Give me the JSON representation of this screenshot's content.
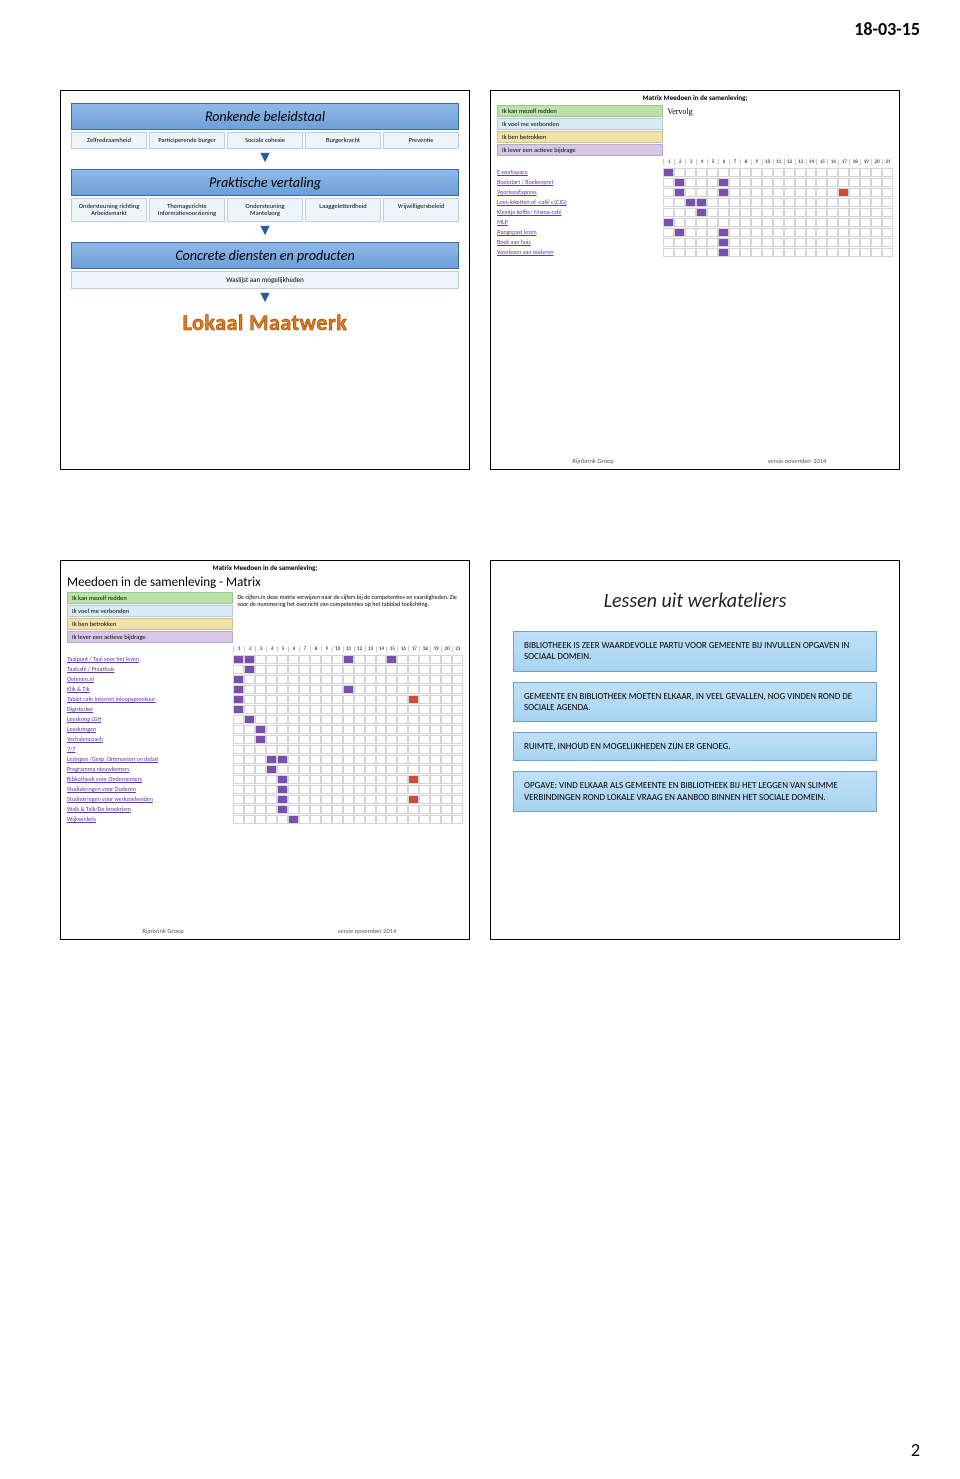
{
  "page": {
    "date": "18-03-15",
    "num": "2"
  },
  "slide1": {
    "bar1": "Ronkende beleidstaal",
    "row1": [
      "Zelfredzaamheid",
      "Participerende burger",
      "Sociale cohesie",
      "Burgerkracht",
      "Preventie"
    ],
    "bar2": "Praktische vertaling",
    "row2": [
      "Ondersteuning richting Arbeidsmarkt",
      "Themagerichte Informatievoorziening",
      "Ondersteuning Mantelzorg",
      "Laaggeletterdheid",
      "Vrijwilligersbeleid"
    ],
    "bar3": "Concrete diensten en producten",
    "sub3": "Waslijst aan mogelijkheden",
    "lokaal": "Lokaal Maatwerk"
  },
  "matrix": {
    "topline": "Matrix Meedoen in de samenleving;",
    "heading": "Meedoen in de samenleving - Matrix",
    "vervolg": "Vervolg",
    "legend_text": "De cijfers in deze matrix verwijzen naar de cijfers bij de competenties en vaardigheden. Zie voor de nummering het overzicht van competenties op het tabblad toelichting.",
    "pills": [
      "Ik kan mezelf redden",
      "Ik voel me verbonden",
      "Ik ben betrokken",
      "Ik lever een actieve bijdrage"
    ],
    "nums": [
      "1",
      "2",
      "3",
      "4",
      "5",
      "6",
      "7",
      "8",
      "9",
      "10",
      "11",
      "12",
      "13",
      "14",
      "15",
      "16",
      "17",
      "18",
      "19",
      "20",
      "21"
    ],
    "foot_org": "Rijnbrink Groep",
    "foot_ver": "versie november 2014"
  },
  "slide2_rows": [
    {
      "label": "E-workspace",
      "cells": [
        "pu",
        "",
        "",
        "",
        "",
        "",
        "",
        "",
        "",
        "",
        "",
        "",
        "",
        "",
        "",
        "",
        "",
        "",
        "",
        "",
        ""
      ]
    },
    {
      "label": "Boekstart / Boekenpret",
      "cells": [
        "",
        "pu",
        "",
        "",
        "",
        "pu",
        "",
        "",
        "",
        "",
        "",
        "",
        "",
        "",
        "",
        "",
        "",
        "",
        "",
        "",
        ""
      ]
    },
    {
      "label": "VoorleesExpress",
      "cells": [
        "",
        "pu",
        "",
        "",
        "",
        "pu",
        "",
        "",
        "",
        "",
        "",
        "",
        "",
        "",
        "",
        "",
        "rd",
        "",
        "",
        "",
        ""
      ]
    },
    {
      "label": "Lees-loketten of -café's (CJG)",
      "cells": [
        "",
        "",
        "pu",
        "pu",
        "",
        "",
        "",
        "",
        "",
        "",
        "",
        "",
        "",
        "",
        "",
        "",
        "",
        "",
        "",
        "",
        ""
      ]
    },
    {
      "label": "Kleintje koffie/ Mama-café",
      "cells": [
        "",
        "",
        "",
        "pu",
        "",
        "",
        "",
        "",
        "",
        "",
        "",
        "",
        "",
        "",
        "",
        "",
        "",
        "",
        "",
        "",
        ""
      ]
    },
    {
      "label": "MLP",
      "cells": [
        "pu",
        "",
        "",
        "",
        "",
        "",
        "",
        "",
        "",
        "",
        "",
        "",
        "",
        "",
        "",
        "",
        "",
        "",
        "",
        "",
        ""
      ]
    },
    {
      "label": "Aangepast lezen",
      "cells": [
        "",
        "pu",
        "",
        "",
        "",
        "pu",
        "",
        "",
        "",
        "",
        "",
        "",
        "",
        "",
        "",
        "",
        "",
        "",
        "",
        "",
        ""
      ]
    },
    {
      "label": "Boek aan huis",
      "cells": [
        "",
        "",
        "",
        "",
        "",
        "pu",
        "",
        "",
        "",
        "",
        "",
        "",
        "",
        "",
        "",
        "",
        "",
        "",
        "",
        "",
        ""
      ]
    },
    {
      "label": "Voorlezen aan ouderen",
      "cells": [
        "",
        "",
        "",
        "",
        "",
        "pu",
        "",
        "",
        "",
        "",
        "",
        "",
        "",
        "",
        "",
        "",
        "",
        "",
        "",
        "",
        ""
      ]
    }
  ],
  "slide3_rows": [
    {
      "label": "Taalpunt / Taal voor het leven",
      "cells": [
        "pu",
        "pu",
        "",
        "",
        "",
        "",
        "",
        "",
        "",
        "",
        "pu",
        "",
        "",
        "",
        "pu",
        "",
        "",
        "",
        "",
        "",
        ""
      ]
    },
    {
      "label": "Taalcafé / Praathuis",
      "cells": [
        "",
        "pu",
        "",
        "",
        "",
        "",
        "",
        "",
        "",
        "",
        "",
        "",
        "",
        "",
        "",
        "",
        "",
        "",
        "",
        "",
        ""
      ]
    },
    {
      "label": "Oefenen.nl",
      "cells": [
        "pu",
        "",
        "",
        "",
        "",
        "",
        "",
        "",
        "",
        "",
        "",
        "",
        "",
        "",
        "",
        "",
        "",
        "",
        "",
        "",
        ""
      ]
    },
    {
      "label": "Klik & Tik",
      "cells": [
        "pu",
        "",
        "",
        "",
        "",
        "",
        "",
        "",
        "",
        "",
        "pu",
        "",
        "",
        "",
        "",
        "",
        "",
        "",
        "",
        "",
        ""
      ]
    },
    {
      "label": "Tablet cafe Internet inloopspreekuur",
      "cells": [
        "pu",
        "",
        "",
        "",
        "",
        "",
        "",
        "",
        "",
        "",
        "",
        "",
        "",
        "",
        "",
        "",
        "rd",
        "",
        "",
        "",
        ""
      ]
    },
    {
      "label": "Digisterker",
      "cells": [
        "pu",
        "",
        "",
        "",
        "",
        "",
        "",
        "",
        "",
        "",
        "",
        "",
        "",
        "",
        "",
        "",
        "",
        "",
        "",
        "",
        ""
      ]
    },
    {
      "label": "Leeskring LGH",
      "cells": [
        "",
        "pu",
        "",
        "",
        "",
        "",
        "",
        "",
        "",
        "",
        "",
        "",
        "",
        "",
        "",
        "",
        "",
        "",
        "",
        "",
        ""
      ]
    },
    {
      "label": "Leeskringen",
      "cells": [
        "",
        "",
        "pu",
        "",
        "",
        "",
        "",
        "",
        "",
        "",
        "",
        "",
        "",
        "",
        "",
        "",
        "",
        "",
        "",
        "",
        ""
      ]
    },
    {
      "label": "Verhalencoach",
      "cells": [
        "",
        "",
        "pu",
        "",
        "",
        "",
        "",
        "",
        "",
        "",
        "",
        "",
        "",
        "",
        "",
        "",
        "",
        "",
        "",
        "",
        ""
      ]
    },
    {
      "label": "7/7",
      "cells": [
        "",
        "",
        "",
        "",
        "",
        "",
        "",
        "",
        "",
        "",
        "",
        "",
        "",
        "",
        "",
        "",
        "",
        "",
        "",
        "",
        ""
      ]
    },
    {
      "label": "Lezingen /Gesp. Ontmoeten on debat",
      "cells": [
        "",
        "",
        "",
        "pu",
        "pu",
        "",
        "",
        "",
        "",
        "",
        "",
        "",
        "",
        "",
        "",
        "",
        "",
        "",
        "",
        "",
        ""
      ]
    },
    {
      "label": "Programma nieuwkomers",
      "cells": [
        "",
        "",
        "",
        "pu",
        "",
        "",
        "",
        "",
        "",
        "",
        "",
        "",
        "",
        "",
        "",
        "",
        "",
        "",
        "",
        "",
        ""
      ]
    },
    {
      "label": "Bibliotheek voor Ondernemers",
      "cells": [
        "",
        "",
        "",
        "",
        "pu",
        "",
        "",
        "",
        "",
        "",
        "",
        "",
        "",
        "",
        "",
        "",
        "rd",
        "",
        "",
        "",
        ""
      ]
    },
    {
      "label": "Studiekringen voor Ouderen",
      "cells": [
        "",
        "",
        "",
        "",
        "pu",
        "",
        "",
        "",
        "",
        "",
        "",
        "",
        "",
        "",
        "",
        "",
        "",
        "",
        "",
        "",
        ""
      ]
    },
    {
      "label": "Studiekringen voor werkzoekenden",
      "cells": [
        "",
        "",
        "",
        "",
        "pu",
        "",
        "",
        "",
        "",
        "",
        "",
        "",
        "",
        "",
        "",
        "",
        "rd",
        "",
        "",
        "",
        ""
      ]
    },
    {
      "label": "Walk & Talk/De broekriem",
      "cells": [
        "",
        "",
        "",
        "",
        "pu",
        "",
        "",
        "",
        "",
        "",
        "",
        "",
        "",
        "",
        "",
        "",
        "",
        "",
        "",
        "",
        ""
      ]
    },
    {
      "label": "Wijkwinkels",
      "cells": [
        "",
        "",
        "",
        "",
        "",
        "pu",
        "",
        "",
        "",
        "",
        "",
        "",
        "",
        "",
        "",
        "",
        "",
        "",
        "",
        "",
        ""
      ]
    }
  ],
  "lessons": {
    "title": "Lessen uit werkateliers",
    "items": [
      "BIBLIOTHEEK IS ZEER WAARDEVOLLE PARTIJ VOOR GEMEENTE BIJ INVULLEN OPGAVEN IN SOCIAAL DOMEIN.",
      "GEMEENTE EN BIBLIOTHEEK MOETEN ELKAAR, IN VEEL GEVALLEN, NOG VINDEN ROND DE SOCIALE AGENDA.",
      "RUIMTE, INHOUD EN MOGELIJKHEDEN ZIJN ER GENOEG.",
      "OPGAVE: VIND ELKAAR ALS GEMEENTE EN BIBLIOTHEEK BIJ HET LEGGEN VAN SLIMME VERBINDINGEN ROND LOKALE VRAAG EN AANBOD BINNEN HET SOCIALE DOMEIN."
    ]
  },
  "colors": {
    "purple": "#7a4fb0",
    "orange": "#e89a3a",
    "green": "#8fc070",
    "red": "#d04a3a",
    "blue": "#5a8fd0"
  }
}
